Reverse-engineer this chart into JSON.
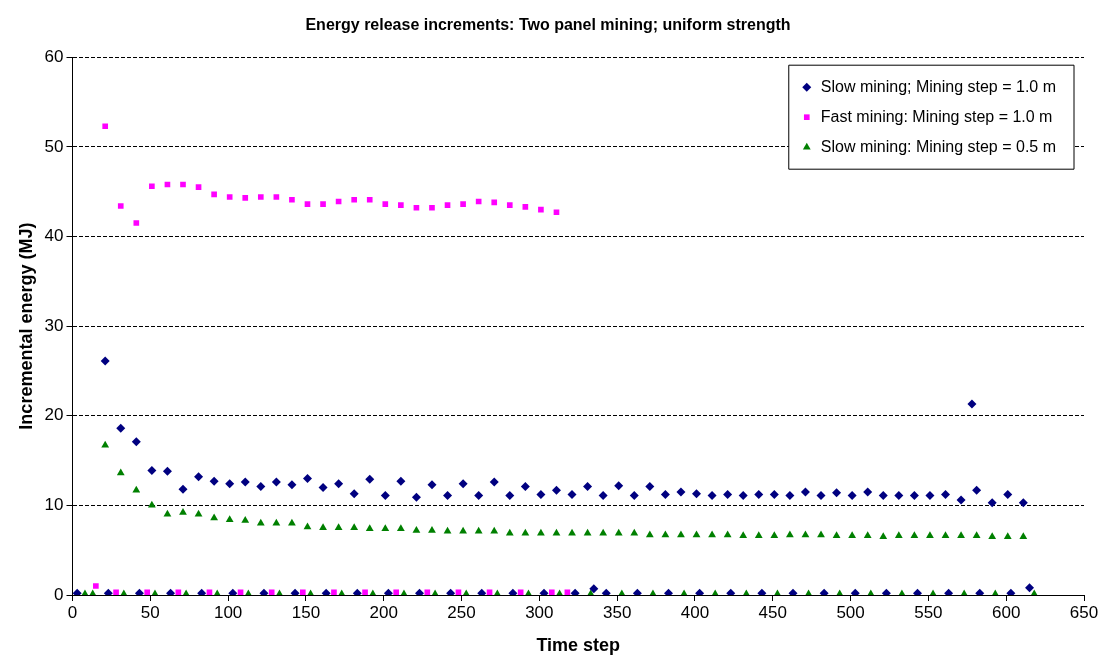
{
  "chart_data": {
    "type": "scatter",
    "title": "Energy release increments: Two panel mining; uniform strength",
    "xlabel": "Time step",
    "ylabel": "Incremental energy (MJ)",
    "xlim": [
      0,
      650
    ],
    "xticks": [
      0,
      50,
      100,
      150,
      200,
      250,
      300,
      350,
      400,
      450,
      500,
      550,
      600,
      650
    ],
    "ylim": [
      0,
      60
    ],
    "yticks": [
      0,
      10,
      20,
      30,
      40,
      50,
      60
    ],
    "grid": "y",
    "legend": "top right",
    "series": [
      {
        "name": "Slow mining; Mining step = 1.0 m",
        "color": "#000080",
        "marker": "diamond",
        "x": [
          21,
          31,
          41,
          51,
          61,
          71,
          81,
          91,
          101,
          111,
          121,
          131,
          141,
          151,
          161,
          171,
          181,
          191,
          201,
          211,
          221,
          231,
          241,
          251,
          261,
          271,
          281,
          291,
          301,
          311,
          321,
          331,
          341,
          351,
          361,
          371,
          381,
          391,
          401,
          411,
          421,
          431,
          441,
          451,
          461,
          471,
          481,
          491,
          501,
          511,
          521,
          531,
          541,
          551,
          561,
          571,
          581,
          591,
          601,
          611,
          578,
          3,
          23,
          43,
          63,
          83,
          103,
          123,
          143,
          163,
          183,
          203,
          223,
          243,
          263,
          283,
          303,
          323,
          335,
          343,
          363,
          383,
          403,
          423,
          443,
          463,
          483,
          503,
          523,
          543,
          563,
          583,
          603,
          615
        ],
        "values": [
          26.1,
          18.6,
          17.1,
          13.9,
          13.8,
          11.8,
          13.2,
          12.7,
          12.4,
          12.6,
          12.1,
          12.6,
          12.3,
          13.0,
          12.0,
          12.4,
          11.3,
          12.9,
          11.1,
          12.7,
          10.9,
          12.3,
          11.1,
          12.4,
          11.1,
          12.6,
          11.1,
          12.1,
          11.2,
          11.7,
          11.2,
          12.1,
          11.1,
          12.2,
          11.1,
          12.1,
          11.2,
          11.5,
          11.3,
          11.1,
          11.2,
          11.1,
          11.2,
          11.2,
          11.1,
          11.5,
          11.1,
          11.4,
          11.1,
          11.5,
          11.1,
          11.1,
          11.1,
          11.1,
          11.2,
          10.6,
          11.7,
          10.3,
          11.2,
          10.3,
          21.3,
          0.2,
          0.2,
          0.2,
          0.2,
          0.2,
          0.2,
          0.2,
          0.2,
          0.2,
          0.2,
          0.2,
          0.2,
          0.2,
          0.2,
          0.2,
          0.2,
          0.2,
          0.7,
          0.2,
          0.2,
          0.2,
          0.2,
          0.2,
          0.2,
          0.2,
          0.2,
          0.2,
          0.2,
          0.2,
          0.2,
          0.2,
          0.2,
          0.8
        ]
      },
      {
        "name": "Fast mining: Mining step = 1.0 m",
        "color": "#ff00ff",
        "marker": "square",
        "x": [
          21,
          31,
          41,
          51,
          61,
          71,
          81,
          91,
          101,
          111,
          121,
          131,
          141,
          151,
          161,
          171,
          181,
          191,
          201,
          211,
          221,
          231,
          241,
          251,
          261,
          271,
          281,
          291,
          301,
          311,
          15,
          28,
          48,
          68,
          88,
          108,
          128,
          148,
          168,
          188,
          208,
          228,
          248,
          268,
          288,
          308,
          318
        ],
        "values": [
          52.3,
          43.4,
          41.5,
          45.6,
          45.8,
          45.8,
          45.5,
          44.7,
          44.4,
          44.3,
          44.4,
          44.4,
          44.1,
          43.6,
          43.6,
          43.9,
          44.1,
          44.1,
          43.6,
          43.5,
          43.2,
          43.2,
          43.5,
          43.6,
          43.9,
          43.8,
          43.5,
          43.3,
          43.0,
          42.7,
          1.0,
          0.3,
          0.3,
          0.3,
          0.3,
          0.3,
          0.3,
          0.3,
          0.3,
          0.3,
          0.3,
          0.3,
          0.3,
          0.3,
          0.3,
          0.3,
          0.3
        ]
      },
      {
        "name": "Slow mining: Mining step = 0.5 m",
        "color": "#008000",
        "marker": "triangle",
        "x": [
          21,
          31,
          41,
          51,
          61,
          71,
          81,
          91,
          101,
          111,
          121,
          131,
          141,
          151,
          161,
          171,
          181,
          191,
          201,
          211,
          221,
          231,
          241,
          251,
          261,
          271,
          281,
          291,
          301,
          311,
          321,
          331,
          341,
          351,
          361,
          371,
          381,
          391,
          401,
          411,
          421,
          431,
          441,
          451,
          461,
          471,
          481,
          491,
          501,
          511,
          521,
          531,
          541,
          551,
          561,
          571,
          581,
          591,
          601,
          611,
          8,
          13,
          33,
          53,
          73,
          93,
          113,
          133,
          153,
          173,
          193,
          213,
          233,
          253,
          273,
          293,
          313,
          333,
          353,
          373,
          393,
          413,
          433,
          453,
          473,
          493,
          513,
          533,
          553,
          573,
          593,
          618
        ],
        "values": [
          16.7,
          13.6,
          11.7,
          10.0,
          9.0,
          9.2,
          9.0,
          8.6,
          8.4,
          8.3,
          8.0,
          8.0,
          8.0,
          7.6,
          7.5,
          7.5,
          7.5,
          7.4,
          7.4,
          7.4,
          7.2,
          7.2,
          7.1,
          7.1,
          7.1,
          7.1,
          6.9,
          6.9,
          6.9,
          6.9,
          6.9,
          6.9,
          6.9,
          6.9,
          6.9,
          6.7,
          6.7,
          6.7,
          6.7,
          6.7,
          6.7,
          6.6,
          6.6,
          6.6,
          6.7,
          6.7,
          6.7,
          6.6,
          6.6,
          6.6,
          6.5,
          6.6,
          6.6,
          6.6,
          6.6,
          6.6,
          6.6,
          6.5,
          6.5,
          6.5,
          0.1,
          0.1,
          0.1,
          0.1,
          0.1,
          0.1,
          0.1,
          0.1,
          0.1,
          0.1,
          0.1,
          0.1,
          0.1,
          0.1,
          0.1,
          0.1,
          0.1,
          0.1,
          0.1,
          0.1,
          0.1,
          0.1,
          0.1,
          0.1,
          0.1,
          0.1,
          0.1,
          0.1,
          0.1,
          0.1,
          0.1,
          0.1
        ]
      }
    ]
  }
}
